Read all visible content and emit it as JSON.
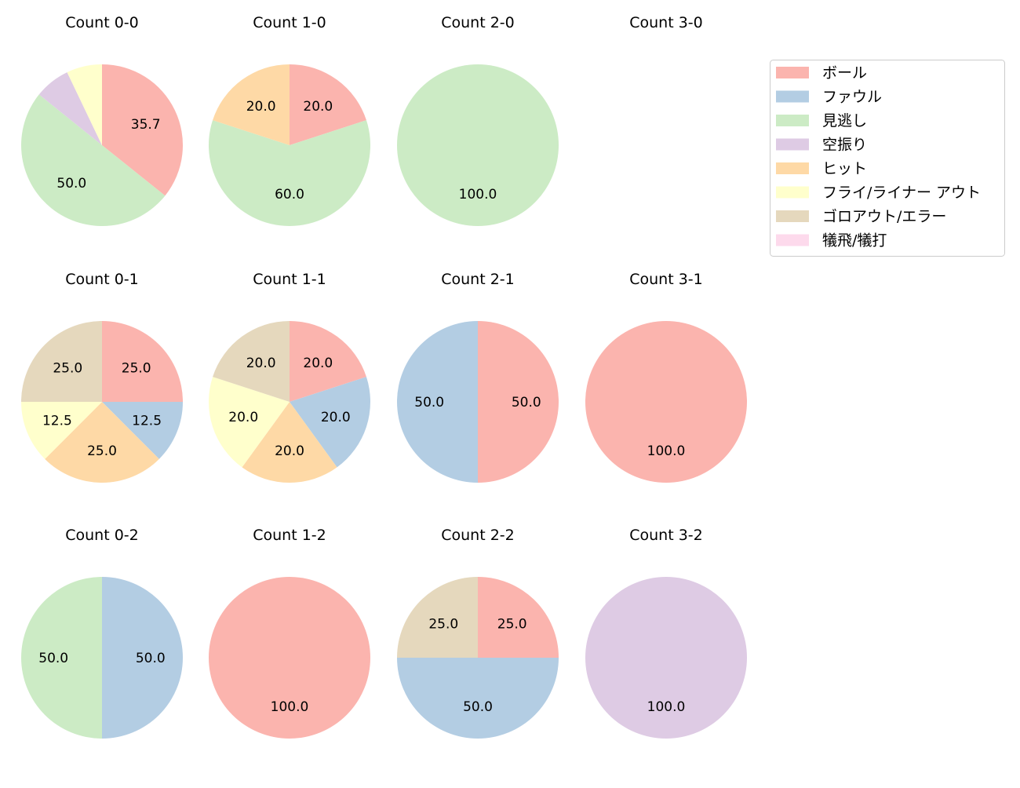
{
  "chart_data": {
    "type": "pie",
    "categories": [
      "ボール",
      "ファウル",
      "見逃し",
      "空振り",
      "ヒット",
      "フライ/ライナー アウト",
      "ゴロアウト/エラー",
      "犠飛/犠打"
    ],
    "colors": [
      "#fbb4ae",
      "#b3cde3",
      "#ccebc5",
      "#decbe4",
      "#fed9a6",
      "#ffffcc",
      "#e5d8bd",
      "#fddaec"
    ],
    "start_angle": 90,
    "direction": "clockwise",
    "label_min_percent": 10,
    "legend_placement": "upper-right",
    "pies": [
      {
        "title": "Count 0-0",
        "values": [
          35.7,
          0,
          50.0,
          7.1,
          0,
          7.1,
          0,
          0
        ]
      },
      {
        "title": "Count 1-0",
        "values": [
          20.0,
          0,
          60.0,
          0,
          20.0,
          0,
          0,
          0
        ]
      },
      {
        "title": "Count 2-0",
        "values": [
          0,
          0,
          100.0,
          0,
          0,
          0,
          0,
          0
        ]
      },
      {
        "title": "Count 3-0",
        "values": []
      },
      {
        "title": "Count 0-1",
        "values": [
          25.0,
          12.5,
          0,
          0,
          25.0,
          12.5,
          25.0,
          0
        ]
      },
      {
        "title": "Count 1-1",
        "values": [
          20.0,
          20.0,
          0,
          0,
          20.0,
          20.0,
          20.0,
          0
        ]
      },
      {
        "title": "Count 2-1",
        "values": [
          50.0,
          50.0,
          0,
          0,
          0,
          0,
          0,
          0
        ]
      },
      {
        "title": "Count 3-1",
        "values": [
          100.0,
          0,
          0,
          0,
          0,
          0,
          0,
          0
        ]
      },
      {
        "title": "Count 0-2",
        "values": [
          0,
          50.0,
          50.0,
          0,
          0,
          0,
          0,
          0
        ]
      },
      {
        "title": "Count 1-2",
        "values": [
          100.0,
          0,
          0,
          0,
          0,
          0,
          0,
          0
        ]
      },
      {
        "title": "Count 2-2",
        "values": [
          25.0,
          50.0,
          0,
          0,
          0,
          0,
          25.0,
          0
        ]
      },
      {
        "title": "Count 3-2",
        "values": [
          0,
          0,
          0,
          100.0,
          0,
          0,
          0,
          0
        ]
      }
    ]
  }
}
